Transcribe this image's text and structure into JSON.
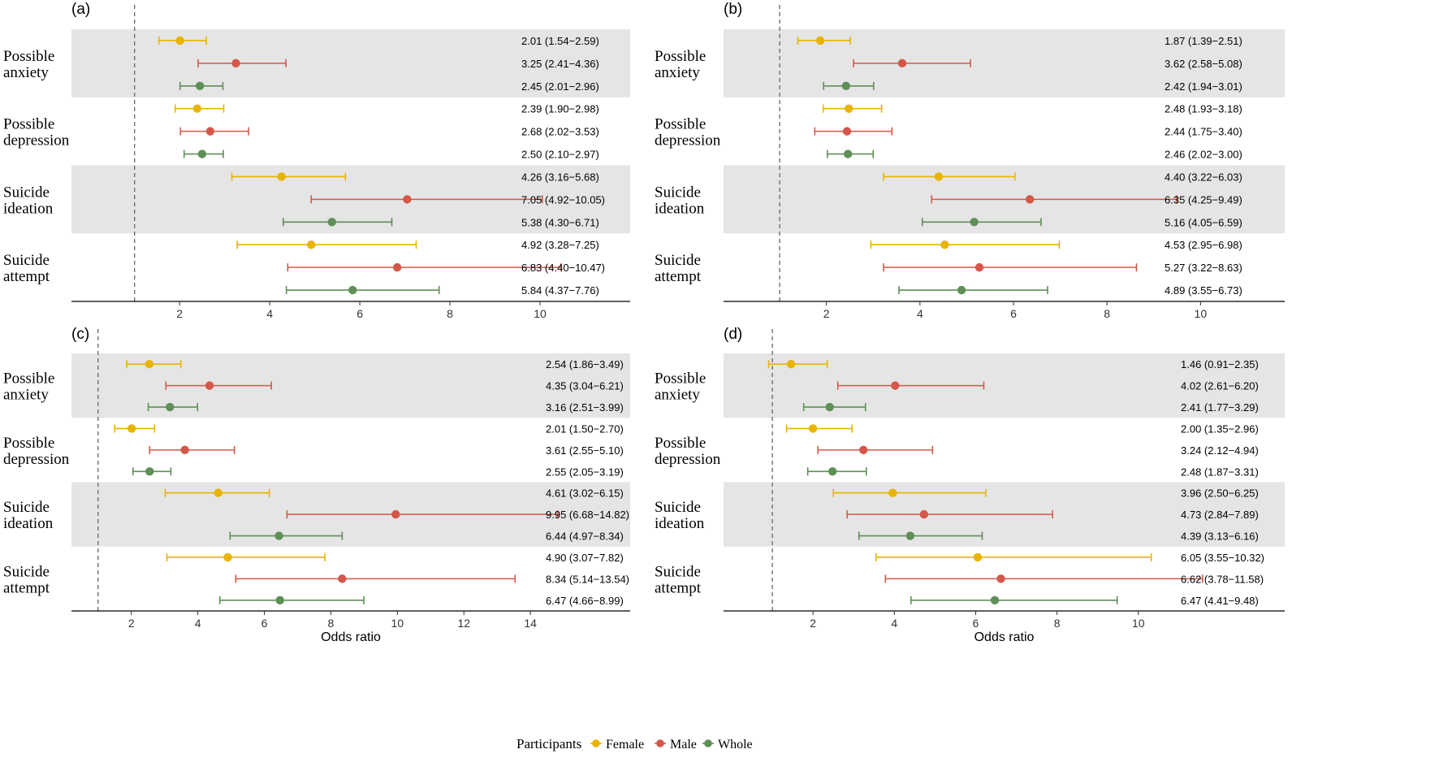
{
  "colors": {
    "female": "#E8B400",
    "male": "#D4574A",
    "whole": "#5E8F56",
    "band": "#E5E5E5",
    "refline": "#666666"
  },
  "legend": {
    "title": "Participants",
    "items": [
      "Female",
      "Male",
      "Whole"
    ]
  },
  "chart_data": [
    {
      "type": "forest",
      "panel": "(a)",
      "xlabel": "",
      "xlim": [
        -0.4,
        12.0
      ],
      "ticks": [
        2,
        4,
        6,
        8,
        10
      ],
      "reference_line": 1,
      "groups": [
        {
          "name": [
            "Possible",
            "anxiety"
          ],
          "shaded": true,
          "rows": [
            {
              "participants": "Female",
              "or": 2.01,
              "lo": 1.54,
              "hi": 2.59,
              "label": "2.01 (1.54−2.59)"
            },
            {
              "participants": "Male",
              "or": 3.25,
              "lo": 2.41,
              "hi": 4.36,
              "label": "3.25 (2.41−4.36)"
            },
            {
              "participants": "Whole",
              "or": 2.45,
              "lo": 2.01,
              "hi": 2.96,
              "label": "2.45 (2.01−2.96)"
            }
          ]
        },
        {
          "name": [
            "Possible",
            "depression"
          ],
          "shaded": false,
          "rows": [
            {
              "participants": "Female",
              "or": 2.39,
              "lo": 1.9,
              "hi": 2.98,
              "label": "2.39 (1.90−2.98)"
            },
            {
              "participants": "Male",
              "or": 2.68,
              "lo": 2.02,
              "hi": 3.53,
              "label": "2.68 (2.02−3.53)"
            },
            {
              "participants": "Whole",
              "or": 2.5,
              "lo": 2.1,
              "hi": 2.97,
              "label": "2.50 (2.10−2.97)"
            }
          ]
        },
        {
          "name": [
            "Suicide",
            "ideation"
          ],
          "shaded": true,
          "rows": [
            {
              "participants": "Female",
              "or": 4.26,
              "lo": 3.16,
              "hi": 5.68,
              "label": "4.26 (3.16−5.68)"
            },
            {
              "participants": "Male",
              "or": 7.05,
              "lo": 4.92,
              "hi": 10.05,
              "label": "7.05 (4.92−10.05)"
            },
            {
              "participants": "Whole",
              "or": 5.38,
              "lo": 4.3,
              "hi": 6.71,
              "label": "5.38 (4.30−6.71)"
            }
          ]
        },
        {
          "name": [
            "Suicide",
            "attempt"
          ],
          "shaded": false,
          "rows": [
            {
              "participants": "Female",
              "or": 4.92,
              "lo": 3.28,
              "hi": 7.25,
              "label": "4.92 (3.28−7.25)"
            },
            {
              "participants": "Male",
              "or": 6.83,
              "lo": 4.4,
              "hi": 10.47,
              "label": "6.83 (4.40−10.47)"
            },
            {
              "participants": "Whole",
              "or": 5.84,
              "lo": 4.37,
              "hi": 7.76,
              "label": "5.84 (4.37−7.76)"
            }
          ]
        }
      ]
    },
    {
      "type": "forest",
      "panel": "(b)",
      "xlabel": "",
      "xlim": [
        -0.2,
        11.8
      ],
      "ticks": [
        2,
        4,
        6,
        8,
        10
      ],
      "reference_line": 1,
      "groups": [
        {
          "name": [
            "Possible",
            "anxiety"
          ],
          "shaded": true,
          "rows": [
            {
              "participants": "Female",
              "or": 1.87,
              "lo": 1.39,
              "hi": 2.51,
              "label": "1.87 (1.39−2.51)"
            },
            {
              "participants": "Male",
              "or": 3.62,
              "lo": 2.58,
              "hi": 5.08,
              "label": "3.62 (2.58−5.08)"
            },
            {
              "participants": "Whole",
              "or": 2.42,
              "lo": 1.94,
              "hi": 3.01,
              "label": "2.42 (1.94−3.01)"
            }
          ]
        },
        {
          "name": [
            "Possible",
            "depression"
          ],
          "shaded": false,
          "rows": [
            {
              "participants": "Female",
              "or": 2.48,
              "lo": 1.93,
              "hi": 3.18,
              "label": "2.48 (1.93−3.18)"
            },
            {
              "participants": "Male",
              "or": 2.44,
              "lo": 1.75,
              "hi": 3.4,
              "label": "2.44 (1.75−3.40)"
            },
            {
              "participants": "Whole",
              "or": 2.46,
              "lo": 2.02,
              "hi": 3.0,
              "label": "2.46 (2.02−3.00)"
            }
          ]
        },
        {
          "name": [
            "Suicide",
            "ideation"
          ],
          "shaded": true,
          "rows": [
            {
              "participants": "Female",
              "or": 4.4,
              "lo": 3.22,
              "hi": 6.03,
              "label": "4.40 (3.22−6.03)"
            },
            {
              "participants": "Male",
              "or": 6.35,
              "lo": 4.25,
              "hi": 9.49,
              "label": "6.35 (4.25−9.49)"
            },
            {
              "participants": "Whole",
              "or": 5.16,
              "lo": 4.05,
              "hi": 6.59,
              "label": "5.16 (4.05−6.59)"
            }
          ]
        },
        {
          "name": [
            "Suicide",
            "attempt"
          ],
          "shaded": false,
          "rows": [
            {
              "participants": "Female",
              "or": 4.53,
              "lo": 2.95,
              "hi": 6.98,
              "label": "4.53 (2.95−6.98)"
            },
            {
              "participants": "Male",
              "or": 5.27,
              "lo": 3.22,
              "hi": 8.63,
              "label": "5.27 (3.22−8.63)"
            },
            {
              "participants": "Whole",
              "or": 4.89,
              "lo": 3.55,
              "hi": 6.73,
              "label": "4.89 (3.55−6.73)"
            }
          ]
        }
      ]
    },
    {
      "type": "forest",
      "panel": "(c)",
      "xlabel": "Odds ratio",
      "xlim": [
        0.2,
        17.0
      ],
      "ticks": [
        2,
        4,
        6,
        8,
        10,
        12,
        14
      ],
      "reference_line": 1,
      "groups": [
        {
          "name": [
            "Possible",
            "anxiety"
          ],
          "shaded": true,
          "rows": [
            {
              "participants": "Female",
              "or": 2.54,
              "lo": 1.86,
              "hi": 3.49,
              "label": "2.54 (1.86−3.49)"
            },
            {
              "participants": "Male",
              "or": 4.35,
              "lo": 3.04,
              "hi": 6.21,
              "label": "4.35 (3.04−6.21)"
            },
            {
              "participants": "Whole",
              "or": 3.16,
              "lo": 2.51,
              "hi": 3.99,
              "label": "3.16 (2.51−3.99)"
            }
          ]
        },
        {
          "name": [
            "Possible",
            "depression"
          ],
          "shaded": false,
          "rows": [
            {
              "participants": "Female",
              "or": 2.01,
              "lo": 1.5,
              "hi": 2.7,
              "label": "2.01 (1.50−2.70)"
            },
            {
              "participants": "Male",
              "or": 3.61,
              "lo": 2.55,
              "hi": 5.1,
              "label": "3.61 (2.55−5.10)"
            },
            {
              "participants": "Whole",
              "or": 2.55,
              "lo": 2.05,
              "hi": 3.19,
              "label": "2.55 (2.05−3.19)"
            }
          ]
        },
        {
          "name": [
            "Suicide",
            "ideation"
          ],
          "shaded": true,
          "rows": [
            {
              "participants": "Female",
              "or": 4.61,
              "lo": 3.02,
              "hi": 6.15,
              "label": "4.61 (3.02−6.15)"
            },
            {
              "participants": "Male",
              "or": 9.95,
              "lo": 6.68,
              "hi": 14.82,
              "label": "9.95 (6.68−14.82)"
            },
            {
              "participants": "Whole",
              "or": 6.44,
              "lo": 4.97,
              "hi": 8.34,
              "label": "6.44 (4.97−8.34)"
            }
          ]
        },
        {
          "name": [
            "Suicide",
            "attempt"
          ],
          "shaded": false,
          "rows": [
            {
              "participants": "Female",
              "or": 4.9,
              "lo": 3.07,
              "hi": 7.82,
              "label": "4.90 (3.07−7.82)"
            },
            {
              "participants": "Male",
              "or": 8.34,
              "lo": 5.14,
              "hi": 13.54,
              "label": "8.34 (5.14−13.54)"
            },
            {
              "participants": "Whole",
              "or": 6.47,
              "lo": 4.66,
              "hi": 8.99,
              "label": "6.47 (4.66−8.99)"
            }
          ]
        }
      ]
    },
    {
      "type": "forest",
      "panel": "(d)",
      "xlabel": "Odds ratio",
      "xlim": [
        -0.2,
        13.6
      ],
      "ticks": [
        2,
        4,
        6,
        8,
        10
      ],
      "reference_line": 1,
      "groups": [
        {
          "name": [
            "Possible",
            "anxiety"
          ],
          "shaded": true,
          "rows": [
            {
              "participants": "Female",
              "or": 1.46,
              "lo": 0.91,
              "hi": 2.35,
              "label": "1.46 (0.91−2.35)"
            },
            {
              "participants": "Male",
              "or": 4.02,
              "lo": 2.61,
              "hi": 6.2,
              "label": "4.02 (2.61−6.20)"
            },
            {
              "participants": "Whole",
              "or": 2.41,
              "lo": 1.77,
              "hi": 3.29,
              "label": "2.41 (1.77−3.29)"
            }
          ]
        },
        {
          "name": [
            "Possible",
            "depression"
          ],
          "shaded": false,
          "rows": [
            {
              "participants": "Female",
              "or": 2.0,
              "lo": 1.35,
              "hi": 2.96,
              "label": "2.00 (1.35−2.96)"
            },
            {
              "participants": "Male",
              "or": 3.24,
              "lo": 2.12,
              "hi": 4.94,
              "label": "3.24 (2.12−4.94)"
            },
            {
              "participants": "Whole",
              "or": 2.48,
              "lo": 1.87,
              "hi": 3.31,
              "label": "2.48 (1.87−3.31)"
            }
          ]
        },
        {
          "name": [
            "Suicide",
            "ideation"
          ],
          "shaded": true,
          "rows": [
            {
              "participants": "Female",
              "or": 3.96,
              "lo": 2.5,
              "hi": 6.25,
              "label": "3.96 (2.50−6.25)"
            },
            {
              "participants": "Male",
              "or": 4.73,
              "lo": 2.84,
              "hi": 7.89,
              "label": "4.73 (2.84−7.89)"
            },
            {
              "participants": "Whole",
              "or": 4.39,
              "lo": 3.13,
              "hi": 6.16,
              "label": "4.39 (3.13−6.16)"
            }
          ]
        },
        {
          "name": [
            "Suicide",
            "attempt"
          ],
          "shaded": false,
          "rows": [
            {
              "participants": "Female",
              "or": 6.05,
              "lo": 3.55,
              "hi": 10.32,
              "label": "6.05 (3.55−10.32)"
            },
            {
              "participants": "Male",
              "or": 6.62,
              "lo": 3.78,
              "hi": 11.58,
              "label": "6.62 (3.78−11.58)"
            },
            {
              "participants": "Whole",
              "or": 6.47,
              "lo": 4.41,
              "hi": 9.48,
              "label": "6.47 (4.41−9.48)"
            }
          ]
        }
      ]
    }
  ]
}
